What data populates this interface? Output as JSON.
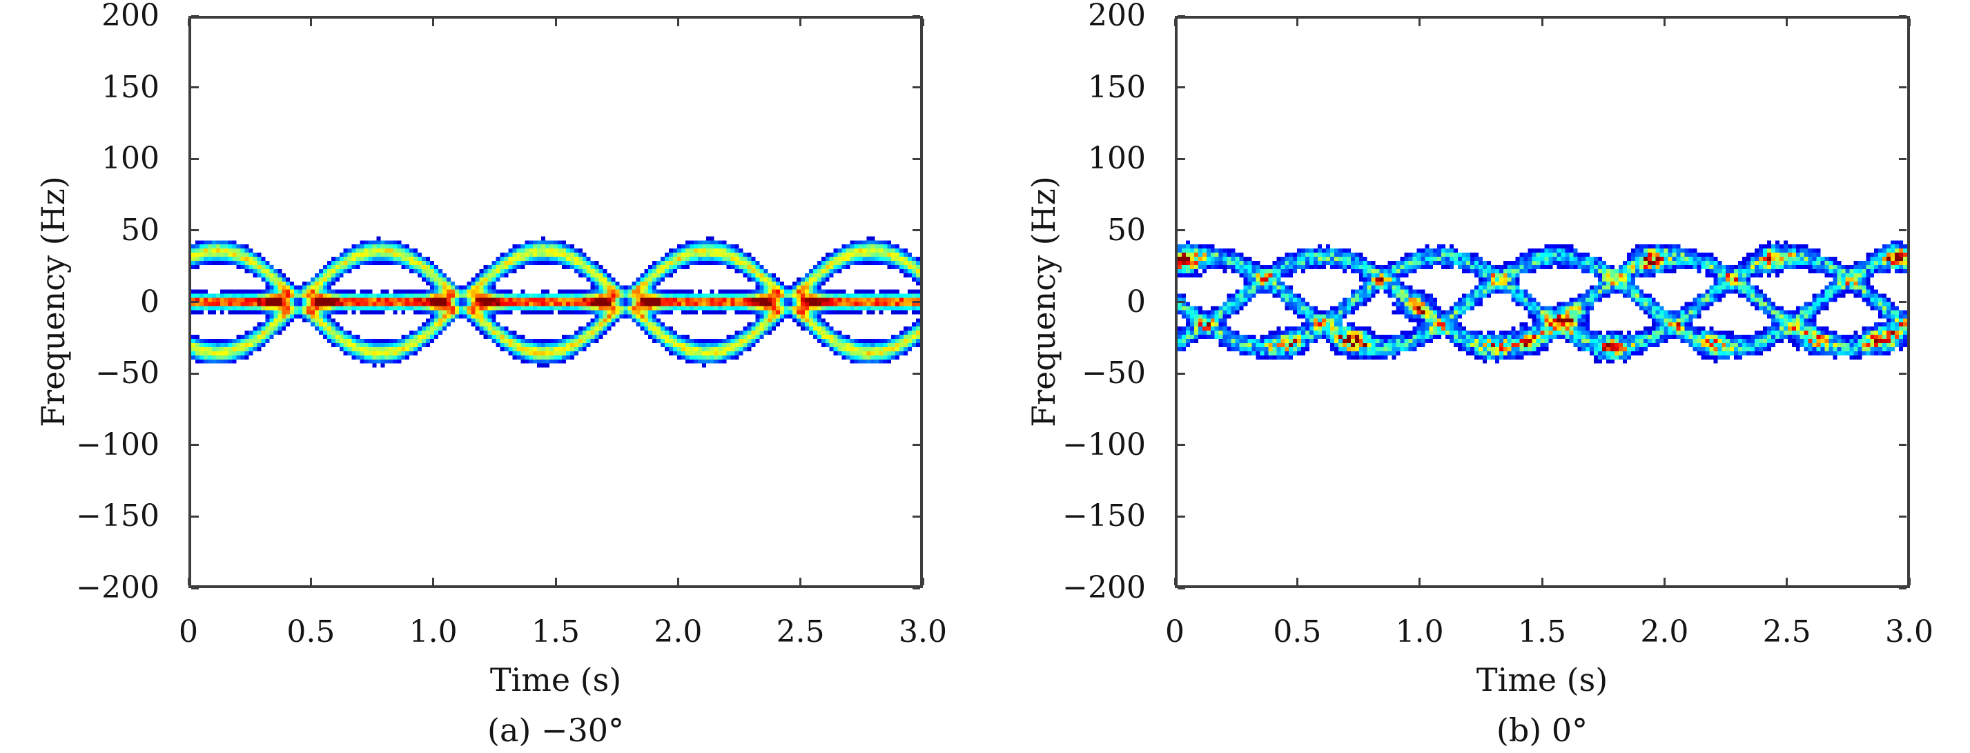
{
  "page": {
    "background": "#ffffff"
  },
  "figure": {
    "axis_color": "#3d3d3d",
    "text_color": "#141414",
    "colormap": "jet",
    "plot_background": "#ffffff"
  },
  "chart_data": [
    {
      "type": "heatmap",
      "panel": "a",
      "caption": "(a) −30°",
      "xlabel": "Time (s)",
      "ylabel": "Frequency (Hz)",
      "xlim": [
        0,
        3
      ],
      "ylim": [
        -200,
        200
      ],
      "x_ticks": [
        {
          "v": 0,
          "t": "0"
        },
        {
          "v": 0.5,
          "t": "0.5"
        },
        {
          "v": 1,
          "t": "1.0"
        },
        {
          "v": 1.5,
          "t": "1.5"
        },
        {
          "v": 2,
          "t": "2.0"
        },
        {
          "v": 2.5,
          "t": "2.5"
        },
        {
          "v": 3,
          "t": "3.0"
        }
      ],
      "y_ticks": [
        {
          "v": 200,
          "t": "200"
        },
        {
          "v": 150,
          "t": "150"
        },
        {
          "v": 100,
          "t": "100"
        },
        {
          "v": 50,
          "t": "50"
        },
        {
          "v": 0,
          "t": "0"
        },
        {
          "v": -50,
          "t": "−50"
        },
        {
          "v": -100,
          "t": "−100"
        },
        {
          "v": -150,
          "t": "−150"
        },
        {
          "v": -200,
          "t": "−200"
        }
      ],
      "grid": false,
      "legend": null,
      "signature": "two antiphase sinusoidal micro-Doppler ridges forming ovals that pinch at zero crossings, plus a strong DC ridge at 0 Hz",
      "band_hz": [
        -45,
        45
      ],
      "model": {
        "threshold": 0.085,
        "noise": 0.12,
        "sigma_f": 4.5,
        "components": [
          {
            "amp": 36,
            "period": 1.344,
            "phase": -2.0713,
            "weight": 0.62
          },
          {
            "amp": -36,
            "period": 1.344,
            "phase": -2.0713,
            "weight": 0.62
          }
        ],
        "baseline": {
          "freq": 0,
          "weight": 0.86,
          "sigma_f": 3.4
        },
        "baseline_dip": {
          "sigma_t": 0.055,
          "depth": 1.0
        },
        "crossings": [
          0.443,
          1.115,
          1.787,
          2.459
        ],
        "flank": {
          "dt": 0.085,
          "weight": 0.55,
          "sigma_t": 0.042,
          "sigma_f": 5.5
        },
        "hole": {
          "weight": 1.3,
          "sigma_t": 0.025,
          "sigma_f": 3.0
        }
      }
    },
    {
      "type": "heatmap",
      "panel": "b",
      "caption": "(b) 0°",
      "xlabel": "Time (s)",
      "ylabel": "Frequency (Hz)",
      "xlim": [
        0,
        3
      ],
      "ylim": [
        -200,
        200
      ],
      "x_ticks": [
        {
          "v": 0,
          "t": "0"
        },
        {
          "v": 0.5,
          "t": "0.5"
        },
        {
          "v": 1,
          "t": "1.0"
        },
        {
          "v": 1.5,
          "t": "1.5"
        },
        {
          "v": 2,
          "t": "2.0"
        },
        {
          "v": 2.5,
          "t": "2.5"
        },
        {
          "v": 3,
          "t": "3.0"
        }
      ],
      "y_ticks": [
        {
          "v": 200,
          "t": "200"
        },
        {
          "v": 150,
          "t": "150"
        },
        {
          "v": 100,
          "t": "100"
        },
        {
          "v": 50,
          "t": "50"
        },
        {
          "v": 0,
          "t": "0"
        },
        {
          "v": -50,
          "t": "−50"
        },
        {
          "v": -100,
          "t": "−100"
        },
        {
          "v": -150,
          "t": "−150"
        },
        {
          "v": -200,
          "t": "−200"
        }
      ],
      "grid": false,
      "legend": null,
      "signature": "three sinusoidal micro-Doppler ridges offset 120° in phase forming a braided band with scattered high-energy red hot spots",
      "band_hz": [
        -42,
        42
      ],
      "model": {
        "threshold": 0.085,
        "noise": 0.5,
        "sigma_f": 4.5,
        "components": [
          {
            "amp": 32,
            "period": 1.44,
            "phase": 1.047,
            "weight": 0.38
          },
          {
            "amp": 32,
            "period": 1.44,
            "phase": 3.142,
            "weight": 0.38
          },
          {
            "amp": 32,
            "period": 1.44,
            "phase": 5.236,
            "weight": 0.38
          }
        ],
        "hotspot_sigma_t": 0.05,
        "hotspot_sigma_f": 6,
        "hotspots": [
          [
            0.03,
            0,
            0.6
          ],
          [
            0.45,
            1,
            0.35
          ],
          [
            0.72,
            0,
            0.6
          ],
          [
            0.98,
            2,
            0.45
          ],
          [
            1.3,
            2,
            0.35
          ],
          [
            1.45,
            2,
            0.4
          ],
          [
            1.6,
            2,
            0.55
          ],
          [
            1.78,
            1,
            0.4
          ],
          [
            1.95,
            2,
            0.55
          ],
          [
            2.2,
            0,
            0.35
          ],
          [
            2.45,
            1,
            0.4
          ],
          [
            2.62,
            2,
            0.35
          ],
          [
            2.9,
            2,
            0.55
          ],
          [
            2.97,
            0,
            0.45
          ]
        ]
      }
    }
  ]
}
